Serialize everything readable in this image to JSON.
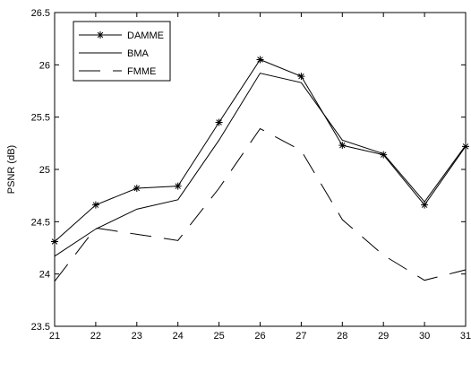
{
  "chart_data": {
    "type": "line",
    "title": "",
    "xlabel": "",
    "ylabel": "PSNR (dB)",
    "xlim": [
      21,
      31
    ],
    "ylim": [
      23.5,
      26.5
    ],
    "grid": false,
    "legend_position": "top-left",
    "x": [
      21,
      22,
      23,
      24,
      25,
      26,
      27,
      28,
      29,
      30,
      31
    ],
    "x_ticks": [
      "21",
      "22",
      "23",
      "24",
      "25",
      "26",
      "27",
      "28",
      "29",
      "30",
      "31"
    ],
    "y_ticks": [
      "23.5",
      "24",
      "24.5",
      "25",
      "25.5",
      "26",
      "26.5"
    ],
    "series": [
      {
        "name": "DAMME",
        "style": "solid-star",
        "values": [
          24.31,
          24.66,
          24.82,
          24.84,
          25.45,
          26.05,
          25.89,
          25.23,
          25.14,
          24.66,
          25.22
        ]
      },
      {
        "name": "BMA",
        "style": "solid",
        "values": [
          24.17,
          24.43,
          24.62,
          24.71,
          25.28,
          25.92,
          25.83,
          25.28,
          25.15,
          24.69,
          25.23
        ]
      },
      {
        "name": "FMME",
        "style": "dashed",
        "values": [
          23.93,
          24.44,
          24.38,
          24.32,
          24.82,
          25.39,
          25.18,
          24.52,
          24.18,
          23.94,
          24.04
        ]
      }
    ],
    "colors": {
      "line": "#000000",
      "background": "#ffffff"
    }
  }
}
